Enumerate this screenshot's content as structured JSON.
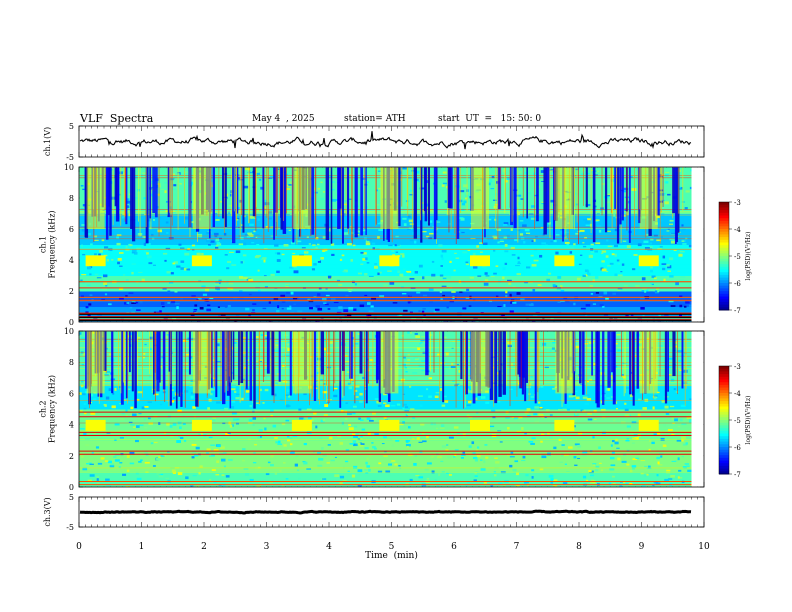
{
  "header": {
    "title": "VLF  Spectra",
    "date": "May 4  , 2025",
    "station": "station= ATH",
    "start": "start  UT  =   15: 50: 0"
  },
  "chart_data": [
    {
      "type": "line",
      "name": "ch1-waveform",
      "ylabel": "ch.1(V)",
      "ylim": [
        -5,
        5
      ],
      "y_ticks": [
        "5",
        "-5"
      ],
      "xlim": [
        0,
        10
      ],
      "level": 0
    },
    {
      "type": "heatmap",
      "name": "ch1-spectrogram",
      "ylabel": "ch.1\nFrequency  (kHz)",
      "ylim": [
        0,
        10
      ],
      "y_ticks": [
        "0",
        "2",
        "4",
        "6",
        "8",
        "10"
      ],
      "xlim": [
        0,
        10
      ],
      "data_end_min": 9.8,
      "colorbar": {
        "label": "log(PSD)(V²/Hz)",
        "range": [
          -7,
          -3
        ],
        "ticks": [
          "-3",
          "-4",
          "-5",
          "-6",
          "-7"
        ]
      },
      "emission_band_khz": [
        3.6,
        4.3
      ],
      "emission_bursts_min": [
        0.25,
        1.95,
        3.55,
        4.95,
        6.4,
        7.75,
        9.1
      ],
      "strong_lines_khz": [
        0.15,
        0.35,
        0.55,
        1.4,
        1.6,
        2.2,
        2.6
      ]
    },
    {
      "type": "heatmap",
      "name": "ch2-spectrogram",
      "ylabel": "ch.2\nFrequency  (kHz)",
      "ylim": [
        0,
        10
      ],
      "y_ticks": [
        "0",
        "2",
        "4",
        "6",
        "8",
        "10"
      ],
      "xlim": [
        0,
        10
      ],
      "data_end_min": 9.8,
      "colorbar": {
        "label": "log(PSD)(V²/Hz)",
        "range": [
          -7,
          -3
        ],
        "ticks": [
          "-3",
          "-4",
          "-5",
          "-6",
          "-7"
        ]
      },
      "emission_band_khz": [
        3.6,
        4.3
      ],
      "emission_bursts_min": [
        0.25,
        1.95,
        3.55,
        4.95,
        6.4,
        7.75,
        9.1
      ],
      "strong_lines_khz": [
        2.1,
        2.3,
        3.3,
        3.5,
        4.5,
        4.8
      ]
    },
    {
      "type": "line",
      "name": "ch3-waveform",
      "ylabel": "ch.3(V)",
      "ylim": [
        -5,
        5
      ],
      "y_ticks": [
        "5",
        "-5"
      ],
      "xlim": [
        0,
        10
      ],
      "level": 0
    }
  ],
  "x_axis": {
    "label": "Time  (min)",
    "ticks": [
      "0",
      "1",
      "2",
      "3",
      "4",
      "5",
      "6",
      "7",
      "8",
      "9",
      "10"
    ]
  }
}
